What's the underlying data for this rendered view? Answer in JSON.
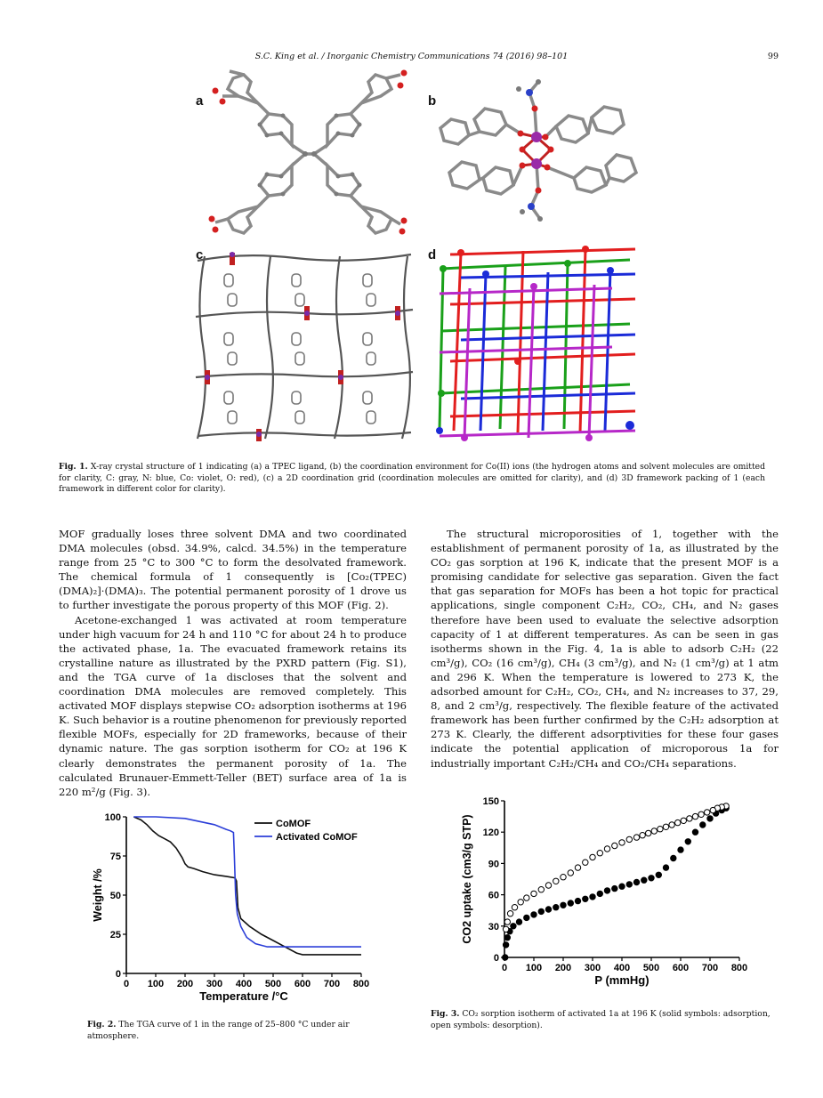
{
  "header": {
    "journal": "S.C. King et al. / Inorganic Chemistry Communications 74 (2016) 98–101",
    "page_number": "99"
  },
  "figure1": {
    "panels": [
      "a",
      "b",
      "c",
      "d"
    ],
    "caption_label": "Fig. 1.",
    "caption_text": "X-ray crystal structure of 1 indicating (a) a TPEC ligand, (b) the coordination environment for Co(II) ions (the hydrogen atoms and solvent molecules are omitted for clarity, C: gray, N: blue, Co: violet, O: red), (c) a 2D coordination grid (coordination molecules are omitted for clarity), and (d) 3D framework packing of 1 (each framework in different color for clarity)."
  },
  "body": {
    "left_p1": "MOF gradually loses three solvent DMA and two coordinated DMA molecules (obsd. 34.9%, calcd. 34.5%) in the temperature range from 25 °C to 300 °C to form the desolvated framework. The chemical formula of 1 consequently is [Co₂(TPEC)(DMA)₂]·(DMA)₃. The potential permanent porosity of 1 drove us to further investigate the porous property of this MOF (Fig. 2).",
    "left_p2": "Acetone-exchanged 1 was activated at room temperature under high vacuum for 24 h and 110 °C for about 24 h to produce the activated phase, 1a. The evacuated framework retains its crystalline nature as illustrated by the PXRD pattern (Fig. S1), and the TGA curve of 1a discloses that the solvent and coordination DMA molecules are removed completely. This activated MOF displays stepwise CO₂ adsorption isotherms at 196 K. Such behavior is a routine phenomenon for previously reported flexible MOFs, especially for 2D frameworks, because of their dynamic nature. The gas sorption isotherm for CO₂ at 196 K clearly demonstrates the permanent porosity of 1a. The calculated Brunauer-Emmett-Teller (BET) surface area of 1a is 220 m²/g (Fig. 3).",
    "right_p1": "The structural microporosities of 1, together with the establishment of permanent porosity of 1a, as illustrated by the CO₂ gas sorption at 196 K, indicate that the present MOF is a promising candidate for selective gas separation. Given the fact that gas separation for MOFs has been a hot topic for practical applications, single component C₂H₂, CO₂, CH₄, and N₂ gases therefore have been used to evaluate the selective adsorption capacity of 1 at different temperatures. As can be seen in gas isotherms shown in the Fig. 4, 1a is able to adsorb C₂H₂ (22 cm³/g), CO₂ (16 cm³/g), CH₄ (3 cm³/g), and N₂ (1 cm³/g) at 1 atm and 296 K. When the temperature is lowered to 273 K, the adsorbed amount for C₂H₂, CO₂, CH₄, and N₂ increases to 37, 29, 8, and 2 cm³/g, respectively. The flexible feature of the activated framework has been further confirmed by the C₂H₂ adsorption at 273 K. Clearly, the different adsorptivities for these four gases indicate the potential application of microporous 1a for industrially important C₂H₂/CH₄ and CO₂/CH₄ separations."
  },
  "figure2": {
    "caption_label": "Fig. 2.",
    "caption_text": "The TGA curve of 1 in the range of 25–800 °C under air atmosphere."
  },
  "figure3": {
    "caption_label": "Fig. 3.",
    "caption_text": "CO₂ sorption isotherm of activated 1a at 196 K (solid symbols: adsorption, open symbols: desorption)."
  },
  "chart_data": [
    {
      "type": "line",
      "xlabel": "Temperature /°C",
      "ylabel": "Weight /%",
      "xlim": [
        0,
        800
      ],
      "ylim": [
        0,
        100
      ],
      "xticks": [
        "0",
        "100",
        "200",
        "300",
        "400",
        "500",
        "600",
        "700",
        "800"
      ],
      "yticks": [
        "0",
        "25",
        "50",
        "75",
        "100"
      ],
      "legend_position": "top-right",
      "series": [
        {
          "name": "CoMOF",
          "color": "#111111",
          "x": [
            25,
            50,
            70,
            90,
            110,
            130,
            150,
            170,
            190,
            200,
            210,
            230,
            260,
            300,
            340,
            370,
            375,
            380,
            390,
            420,
            460,
            500,
            540,
            580,
            600,
            700,
            800
          ],
          "y": [
            100,
            98,
            95,
            91,
            88,
            86,
            84,
            80,
            74,
            70,
            68,
            67,
            65,
            63,
            62,
            61,
            59,
            42,
            35,
            30,
            25,
            21,
            17,
            13,
            12,
            12,
            12
          ]
        },
        {
          "name": "Activated CoMOF",
          "color": "#2b3ed8",
          "x": [
            25,
            100,
            200,
            250,
            300,
            340,
            355,
            365,
            368,
            372,
            378,
            390,
            410,
            440,
            480,
            550,
            600,
            700,
            800
          ],
          "y": [
            100,
            100,
            99,
            97,
            95,
            92,
            91,
            90,
            75,
            50,
            38,
            30,
            23,
            19,
            17,
            17,
            17,
            17,
            17
          ]
        }
      ]
    },
    {
      "type": "scatter",
      "xlabel": "P (mmHg)",
      "ylabel": "CO2 uptake (cm3/g STP)",
      "xlim": [
        0,
        800
      ],
      "ylim": [
        0,
        150
      ],
      "xticks": [
        "0",
        "100",
        "200",
        "300",
        "400",
        "500",
        "600",
        "700",
        "800"
      ],
      "yticks": [
        "0",
        "30",
        "60",
        "90",
        "120",
        "150"
      ],
      "series": [
        {
          "marker": "filled",
          "x": [
            2,
            5,
            10,
            18,
            30,
            50,
            75,
            100,
            125,
            150,
            175,
            200,
            225,
            250,
            275,
            300,
            325,
            350,
            375,
            400,
            425,
            450,
            475,
            500,
            525,
            550,
            575,
            600,
            625,
            650,
            675,
            700,
            720,
            740,
            755
          ],
          "y": [
            0,
            12,
            19,
            25,
            30,
            34,
            38,
            41,
            44,
            46,
            48,
            50,
            52,
            54,
            56,
            58,
            61,
            64,
            66,
            68,
            70,
            72,
            74,
            76,
            79,
            86,
            95,
            103,
            111,
            120,
            127,
            133,
            138,
            141,
            143
          ]
        },
        {
          "marker": "open",
          "x": [
            755,
            740,
            725,
            710,
            690,
            670,
            650,
            630,
            610,
            590,
            570,
            550,
            530,
            510,
            490,
            470,
            450,
            425,
            400,
            375,
            350,
            325,
            300,
            275,
            250,
            225,
            200,
            175,
            150,
            125,
            100,
            75,
            55,
            35,
            20,
            10,
            5
          ],
          "y": [
            145,
            144,
            143,
            141,
            139,
            137,
            135,
            133,
            131,
            129,
            127,
            125,
            123,
            121,
            119,
            117,
            115,
            113,
            110,
            107,
            104,
            100,
            96,
            91,
            86,
            81,
            77,
            73,
            69,
            65,
            61,
            57,
            53,
            48,
            42,
            34,
            27
          ]
        }
      ]
    }
  ]
}
